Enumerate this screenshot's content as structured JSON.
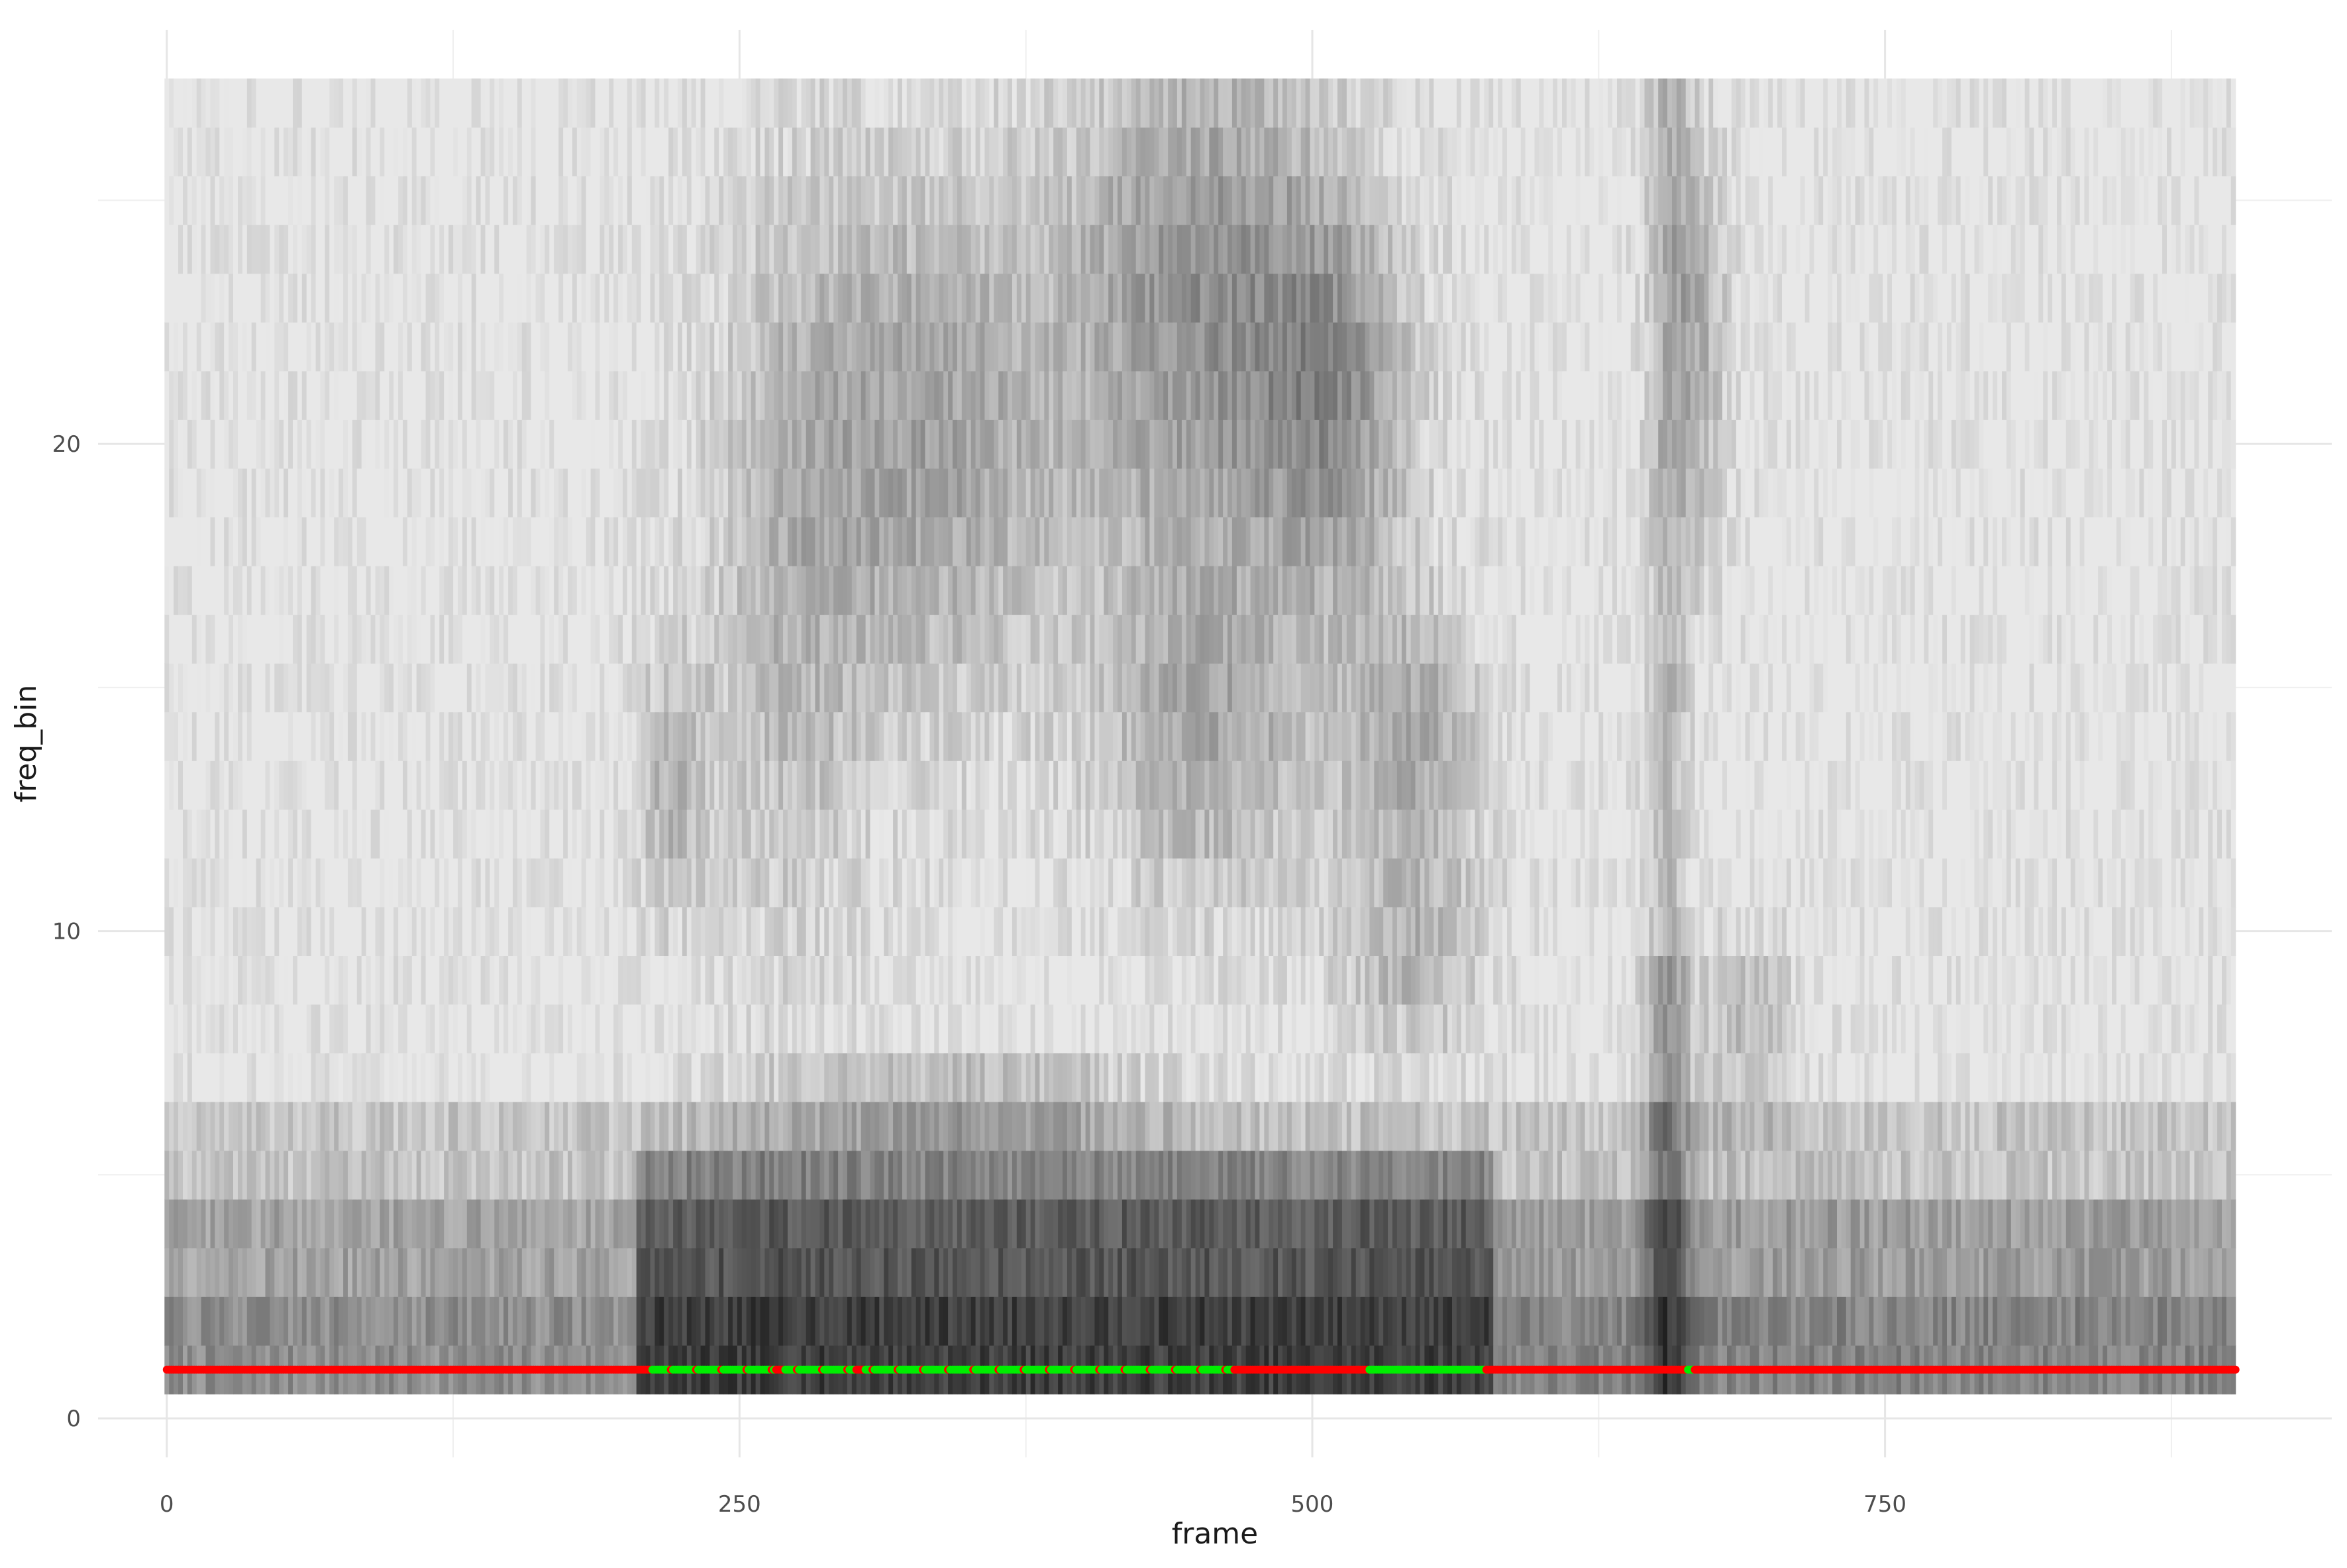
{
  "chart_data": {
    "type": "heatmap",
    "title": "",
    "xlabel": "frame",
    "ylabel": "freq_bin",
    "xlim": [
      -30,
      945
    ],
    "ylim": [
      -0.8,
      28.5
    ],
    "x_ticks": [
      0,
      250,
      500,
      750
    ],
    "x_tick_labels": [
      "0",
      "250",
      "500",
      "750"
    ],
    "y_ticks": [
      0,
      10,
      20
    ],
    "y_tick_labels": [
      "0",
      "10",
      "20"
    ],
    "grid": true,
    "legend": "none",
    "tiles": {
      "frames": [
        0,
        903
      ],
      "freq_bins": [
        1,
        27
      ],
      "fill": "spectral energy shown as grayscale (darker = higher)"
    },
    "voicing_points": {
      "freq_bin": 1,
      "frames": [
        0,
        903
      ],
      "colors": {
        "unvoiced": "#ff0000",
        "voiced": "#00ee00"
      },
      "voiced_ranges": [
        [
          212,
          265
        ],
        [
          270,
          300
        ],
        [
          305,
          465
        ],
        [
          525,
          575
        ],
        [
          664,
          666
        ]
      ]
    }
  }
}
